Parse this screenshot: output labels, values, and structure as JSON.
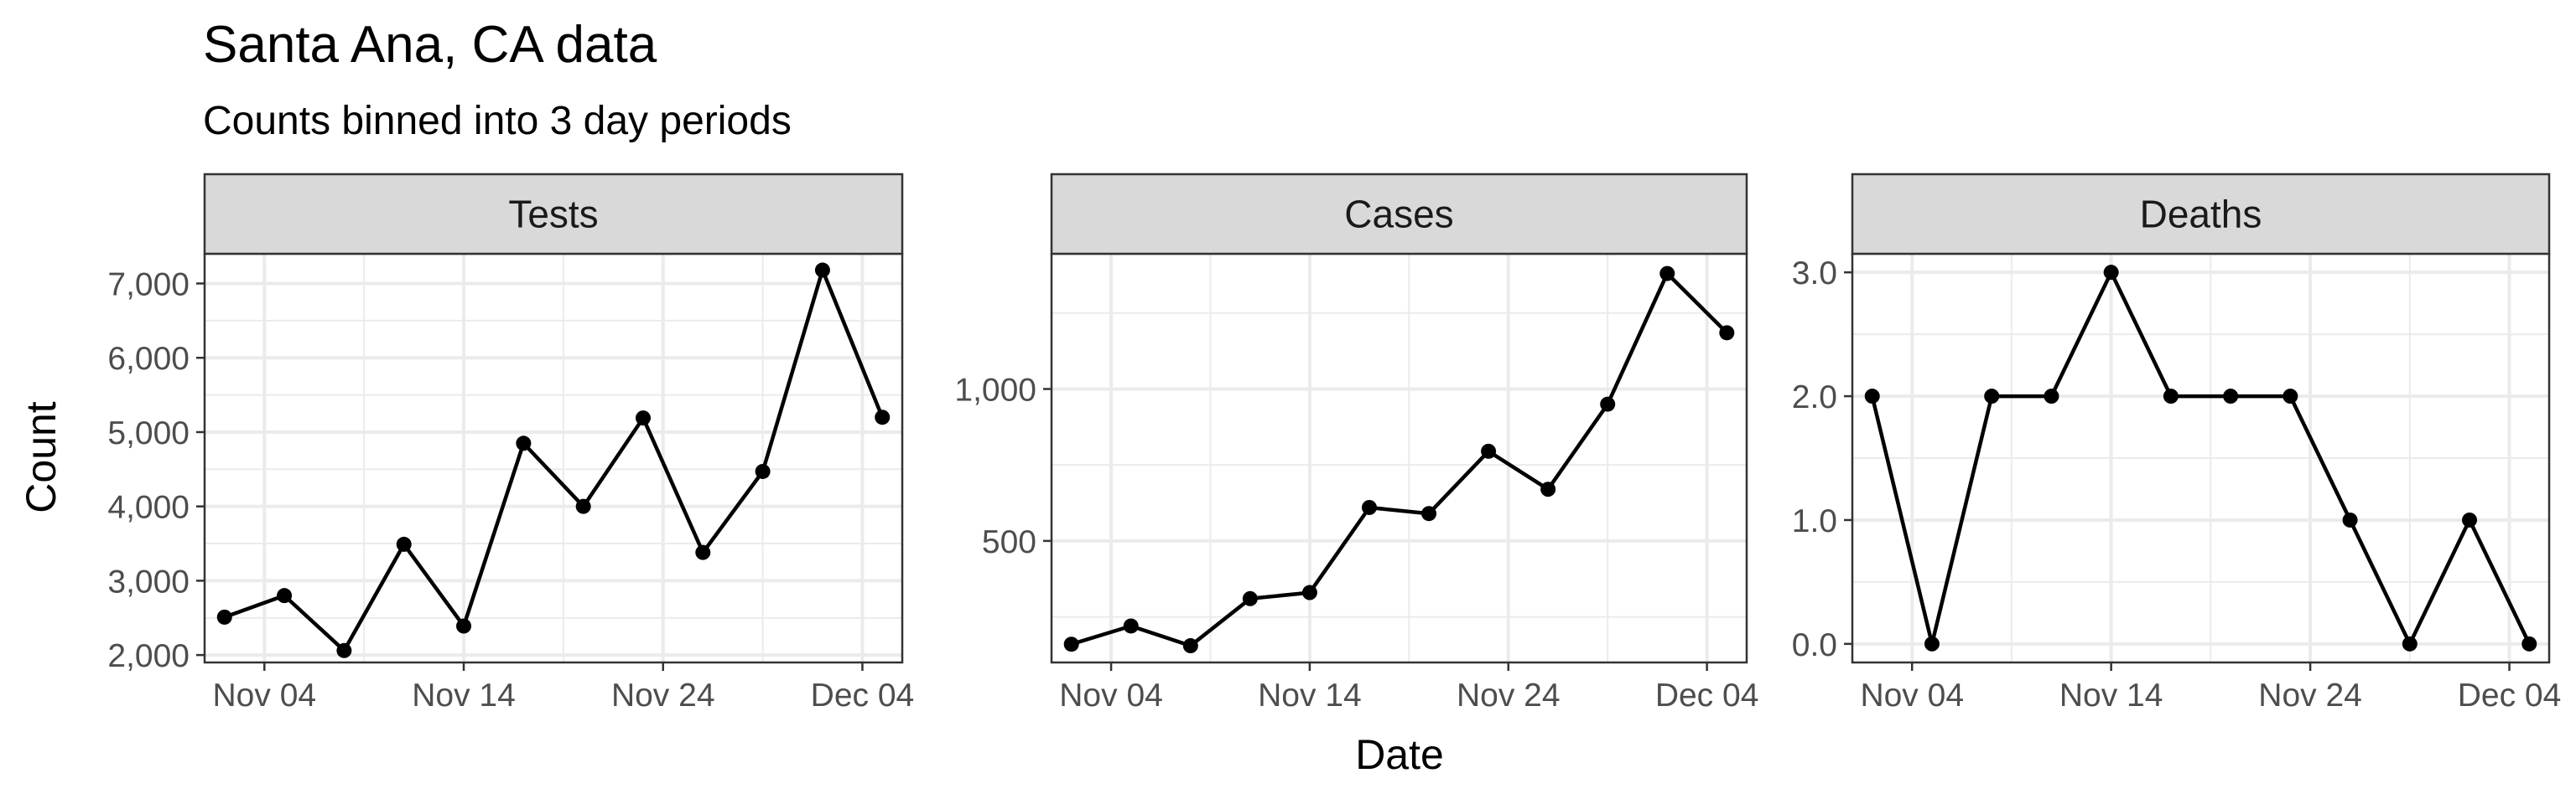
{
  "chart_data": {
    "type": "line",
    "title": "Santa Ana, CA data",
    "subtitle": "Counts binned into 3 day periods",
    "xlabel": "Date",
    "ylabel": "Count",
    "grid": true,
    "x": [
      "2020-11-02",
      "2020-11-05",
      "2020-11-08",
      "2020-11-11",
      "2020-11-14",
      "2020-11-17",
      "2020-11-20",
      "2020-11-23",
      "2020-11-26",
      "2020-11-29",
      "2020-12-02",
      "2020-12-05"
    ],
    "xlim": [
      "2020-11-01",
      "2020-12-06"
    ],
    "x_ticks": [
      {
        "date": "2020-11-04",
        "label": "Nov 04"
      },
      {
        "date": "2020-11-14",
        "label": "Nov 14"
      },
      {
        "date": "2020-11-24",
        "label": "Nov 24"
      },
      {
        "date": "2020-12-04",
        "label": "Dec 04"
      }
    ],
    "series": [
      {
        "name": "Tests",
        "values": [
          2510,
          2800,
          2060,
          3490,
          2390,
          4850,
          4000,
          5190,
          3380,
          4470,
          7180,
          5200
        ],
        "ylim": [
          1900,
          7400
        ],
        "y_ticks": [
          {
            "value": 2000,
            "label": "2,000"
          },
          {
            "value": 3000,
            "label": "3,000"
          },
          {
            "value": 4000,
            "label": "4,000"
          },
          {
            "value": 5000,
            "label": "5,000"
          },
          {
            "value": 6000,
            "label": "6,000"
          },
          {
            "value": 7000,
            "label": "7,000"
          }
        ]
      },
      {
        "name": "Cases",
        "values": [
          160,
          220,
          155,
          310,
          330,
          610,
          590,
          795,
          670,
          950,
          1380,
          1185
        ],
        "ylim": [
          100,
          1445
        ],
        "y_ticks": [
          {
            "value": 500,
            "label": "500"
          },
          {
            "value": 1000,
            "label": "1,000"
          }
        ]
      },
      {
        "name": "Deaths",
        "values": [
          2,
          0,
          2,
          2,
          3,
          2,
          2,
          2,
          1,
          0,
          1,
          0
        ],
        "ylim": [
          -0.15,
          3.15
        ],
        "y_ticks": [
          {
            "value": 0,
            "label": "0.0"
          },
          {
            "value": 1,
            "label": "1.0"
          },
          {
            "value": 2,
            "label": "2.0"
          },
          {
            "value": 3,
            "label": "3.0"
          }
        ]
      }
    ]
  }
}
